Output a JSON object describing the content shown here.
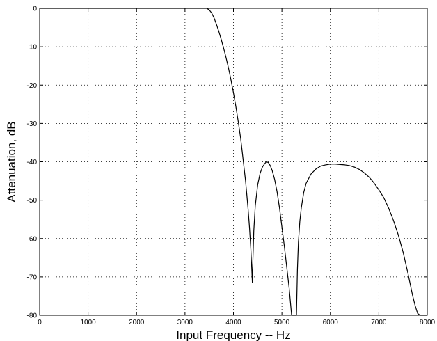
{
  "chart_data": {
    "type": "line",
    "title": "",
    "xlabel": "Input Frequency -- Hz",
    "ylabel": "Attenuation, dB",
    "xlim": [
      0,
      8000
    ],
    "ylim": [
      -80,
      0
    ],
    "grid": true,
    "xticks": [
      0,
      1000,
      2000,
      3000,
      4000,
      5000,
      6000,
      7000,
      8000
    ],
    "yticks": [
      0,
      -10,
      -20,
      -30,
      -40,
      -50,
      -60,
      -70,
      -80
    ],
    "line_color": "#000000",
    "series": [
      {
        "x": [
          0,
          500,
          1000,
          1500,
          2000,
          2500,
          3000,
          3200,
          3300,
          3380,
          3450,
          3500,
          3550,
          3600,
          3650,
          3700,
          3750,
          3800,
          3850,
          3900,
          3950,
          4000,
          4050,
          4100,
          4150,
          4200,
          4250,
          4300,
          4330,
          4360,
          4380,
          4390,
          4400,
          4420,
          4450,
          4500,
          4550,
          4600,
          4650,
          4680,
          4720,
          4760,
          4800,
          4850,
          4900,
          4950,
          5000,
          5050,
          5100,
          5150,
          5200,
          5240,
          5270,
          5290,
          5300,
          5310,
          5320,
          5340,
          5370,
          5400,
          5450,
          5500,
          5600,
          5700,
          5800,
          5900,
          6000,
          6100,
          6200,
          6300,
          6400,
          6500,
          6600,
          6700,
          6800,
          6900,
          7000,
          7100,
          7200,
          7300,
          7400,
          7500,
          7600,
          7650,
          7700,
          7750,
          7800,
          7850,
          7900,
          7950,
          7990
        ],
        "y": [
          0,
          0,
          0,
          0,
          0,
          0,
          0,
          0,
          0,
          0,
          0,
          -0.4,
          -1.2,
          -2.5,
          -4.2,
          -6.1,
          -8.2,
          -10.5,
          -13,
          -15.7,
          -18.7,
          -22,
          -25.6,
          -29.6,
          -34,
          -39.5,
          -45,
          -52,
          -57,
          -63,
          -68.5,
          -71.5,
          -66,
          -58,
          -51.5,
          -46,
          -43,
          -41.3,
          -40.4,
          -40,
          -40.2,
          -41,
          -42.3,
          -44.6,
          -47.8,
          -52,
          -57,
          -62,
          -67.5,
          -73,
          -80,
          -80,
          -80,
          -80,
          -80,
          -74,
          -68,
          -61,
          -55.5,
          -52,
          -48,
          -45.6,
          -43.2,
          -41.9,
          -41.1,
          -40.8,
          -40.6,
          -40.6,
          -40.7,
          -40.8,
          -41,
          -41.4,
          -42,
          -42.9,
          -44,
          -45.5,
          -47.3,
          -49.3,
          -52,
          -55.2,
          -59,
          -63.5,
          -69,
          -72,
          -75,
          -77.5,
          -79.5,
          -80,
          -80,
          -80,
          -80
        ]
      }
    ]
  }
}
